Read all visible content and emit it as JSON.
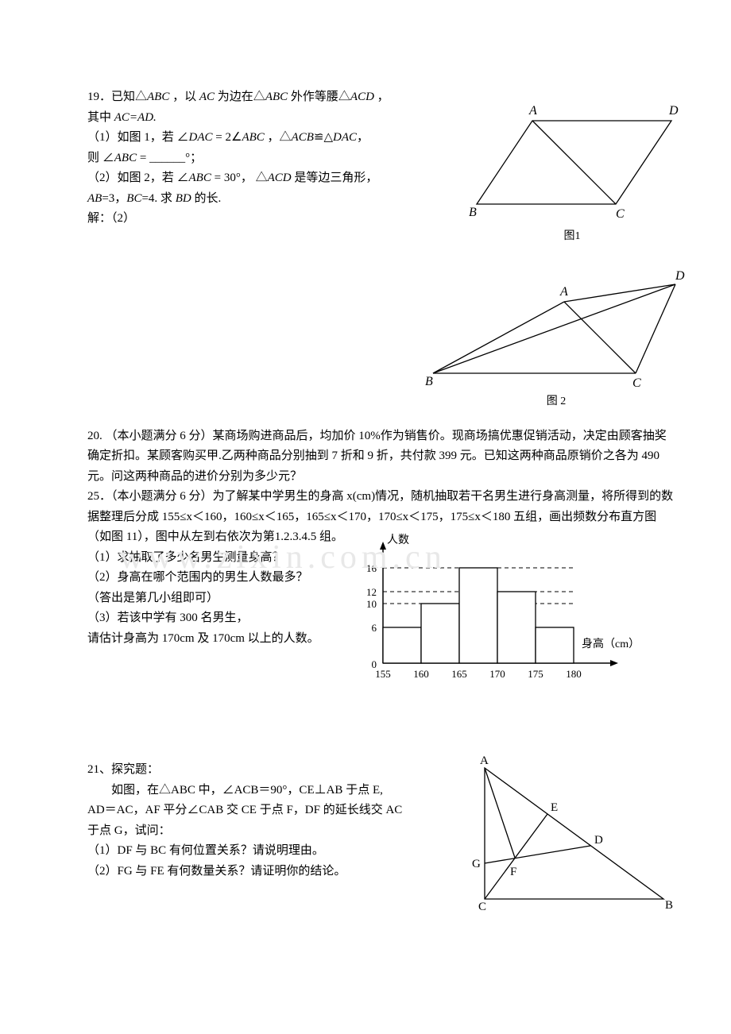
{
  "q19": {
    "line1": "19．已知△",
    "abc1": "ABC",
    "line1b": " ，以 ",
    "ac": "AC",
    "line1c": " 为边在△",
    "abc2": "ABC",
    "line1d": " 外作等腰△",
    "acd1": "ACD",
    "line1e": " ，",
    "line2a": "其中 ",
    "acad": "AC=AD.",
    "p1a": "（1）如图 1，若 ∠",
    "dac": "DAC",
    "eq": " = 2∠",
    "abc3": "ABC",
    "p1b": " ，△",
    "acb": "ACB",
    "cong": "≌△",
    "dac2": "DAC",
    "comma": "，",
    "p1c": "则 ∠",
    "abc4": "ABC",
    "blank": " = ______°；",
    "p2a": "（2）如图 2，若 ∠",
    "abc5": "ABC",
    "eq30": " = 30°， △",
    "acd2": "ACD",
    "p2b": " 是等边三角形，",
    "p2c1": " AB",
    "p2c2": "=3，",
    "p2c3": "BC",
    "p2c4": "=4. 求 ",
    "bd": "BD",
    "p2c5": " 的长.",
    "sol": "解：（2）",
    "fig1": "图1",
    "fig2": "图 2",
    "pts1": {
      "A": "A",
      "B": "B",
      "C": "C",
      "D": "D"
    }
  },
  "q20": {
    "text": "20. （本小题满分 6 分）某商场购进商品后，均加价 10%作为销售价。现商场搞优惠促销活动，决定由顾客抽奖确定折扣。某顾客购买甲.乙两种商品分别抽到 7 折和 9 折，共付款 399 元。已知这两种商品原销价之各为 490 元。问这两种商品的进价分别为多少元？"
  },
  "q25": {
    "l1": "25．（本小题满分 6 分）为了解某中学男生的身高 x(cm)情况，随机抽取若干名男生进行身高测量，将所得到的数据整理后分成 155≤x＜160，160≤x＜165，165≤x＜170，170≤x＜175，175≤x＜180 五组，画出频数分布直方图（如图 11），图中从左到右依次为第1.2.3.4.5 组。",
    "p1": "（1）求抽取了多少名男生测量身高？",
    "p2": "（2）身高在哪个范围内的男生人数最多？",
    "p2b": "（答出是第几小组即可）",
    "p3": "（3）若该中学有 300 名男生，",
    "p3b": "请估计身高为 170cm 及 170cm 以上的人数。",
    "hist": {
      "ylabel": "人数",
      "xlabel": "身高（cm）",
      "yticks": [
        "0",
        "6",
        "10",
        "12",
        "16"
      ],
      "xticks": [
        "155",
        "160",
        "165",
        "170",
        "175",
        "180"
      ],
      "bars": [
        6,
        10,
        16,
        12,
        6
      ],
      "bar_fill": "#ffffff",
      "axis_color": "#000000",
      "dash_color": "#000000"
    }
  },
  "q21": {
    "title": "21、探究题：",
    "l1": "如图，在△ABC 中，∠ACB＝90°，CE⊥AB 于点 E,",
    "l2": "AD＝AC，AF 平分∠CAB 交 CE 于点 F，DF 的延长线交 AC",
    "l3": "于点 G，试问：",
    "p1": "（1）DF 与 BC 有何位置关系？请说明理由。",
    "p2": "（2）FG 与 FE 有何数量关系？请证明你的结论。",
    "pts": {
      "A": "A",
      "B": "B",
      "C": "C",
      "D": "D",
      "E": "E",
      "F": "F",
      "G": "G"
    }
  },
  "watermarks": {
    "w1": "www.zixin.com.cn"
  }
}
